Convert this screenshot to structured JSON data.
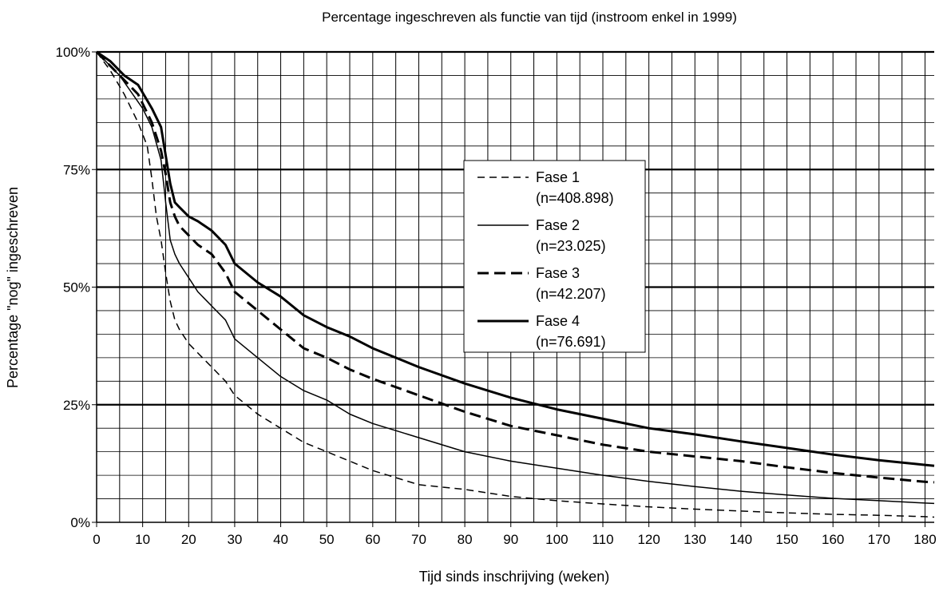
{
  "chart_data": {
    "type": "line",
    "title": "Percentage ingeschreven als functie van tijd (instroom enkel in 1999)",
    "xlabel": "Tijd sinds inschrijving (weken)",
    "ylabel": "Percentage \"nog\" ingeschreven",
    "xlim": [
      0,
      182
    ],
    "ylim": [
      0,
      100
    ],
    "x_ticks": [
      "0",
      "10",
      "20",
      "30",
      "40",
      "50",
      "60",
      "70",
      "80",
      "90",
      "100",
      "110",
      "120",
      "130",
      "140",
      "150",
      "160",
      "170",
      "180"
    ],
    "y_ticks": [
      "0%",
      "25%",
      "50%",
      "75%",
      "100%"
    ],
    "grid": true,
    "legend_position": "center",
    "series": [
      {
        "name": "Fase 1",
        "count_label": "(n=408.898)",
        "style": "dashed-thin",
        "x": [
          0,
          3,
          6,
          9,
          11,
          12,
          13,
          14,
          15,
          15.5,
          16,
          17,
          18,
          20,
          22,
          25,
          28,
          30,
          35,
          40,
          45,
          50,
          55,
          60,
          70,
          80,
          90,
          100,
          110,
          120,
          130,
          140,
          150,
          160,
          170,
          180,
          182
        ],
        "y": [
          100,
          96,
          91,
          85,
          80,
          73,
          65,
          60,
          53,
          50,
          47,
          43,
          41,
          38,
          36,
          33,
          30,
          27,
          23,
          20,
          17,
          15,
          13,
          11,
          8,
          7,
          5.5,
          4.6,
          3.9,
          3.3,
          2.8,
          2.4,
          2.0,
          1.7,
          1.5,
          1.2,
          1.1
        ]
      },
      {
        "name": "Fase 2",
        "count_label": "(n=23.025)",
        "style": "solid-thin",
        "x": [
          0,
          5,
          10,
          12,
          14,
          15,
          16,
          17,
          18,
          20,
          22,
          25,
          28,
          30,
          35,
          40,
          45,
          50,
          55,
          60,
          70,
          80,
          90,
          100,
          110,
          120,
          130,
          140,
          150,
          160,
          170,
          180,
          182
        ],
        "y": [
          100,
          95,
          88,
          84,
          77,
          68,
          60,
          57,
          55,
          52,
          49,
          46,
          43,
          39,
          35,
          31,
          28,
          26,
          23,
          21,
          18,
          15,
          13,
          11.5,
          10,
          8.7,
          7.6,
          6.6,
          5.8,
          5.1,
          4.6,
          4.1,
          4
        ]
      },
      {
        "name": "Fase 3",
        "count_label": "(n=42.207)",
        "style": "dashed-thick",
        "x": [
          0,
          3,
          6,
          9,
          12,
          14,
          15,
          16,
          17,
          18,
          20,
          22,
          25,
          28,
          30,
          35,
          40,
          45,
          50,
          55,
          60,
          70,
          80,
          90,
          100,
          110,
          120,
          130,
          140,
          150,
          160,
          170,
          180,
          182
        ],
        "y": [
          100,
          97,
          94,
          91,
          85,
          79,
          74,
          68,
          65,
          63,
          61,
          59,
          57,
          53,
          49,
          45,
          41,
          37,
          35,
          32.5,
          30.5,
          27,
          23.5,
          20.5,
          18.5,
          16.5,
          15,
          14,
          13,
          11.7,
          10.5,
          9.5,
          8.6,
          8.5
        ]
      },
      {
        "name": "Fase 4",
        "count_label": "(n=76.691)",
        "style": "solid-thick",
        "x": [
          0,
          3,
          6,
          9,
          12,
          14,
          15,
          16,
          17,
          18,
          20,
          22,
          25,
          28,
          30,
          35,
          40,
          45,
          50,
          55,
          60,
          70,
          80,
          90,
          100,
          110,
          120,
          130,
          140,
          150,
          160,
          170,
          180,
          182
        ],
        "y": [
          100,
          98,
          95,
          93,
          88,
          84,
          78,
          72,
          68,
          67,
          65,
          64,
          62,
          59,
          55,
          51,
          48,
          44,
          41.5,
          39.5,
          37,
          33,
          29.5,
          26.5,
          24,
          22,
          20,
          18.7,
          17.2,
          15.8,
          14.4,
          13.2,
          12.2,
          12
        ]
      }
    ]
  }
}
